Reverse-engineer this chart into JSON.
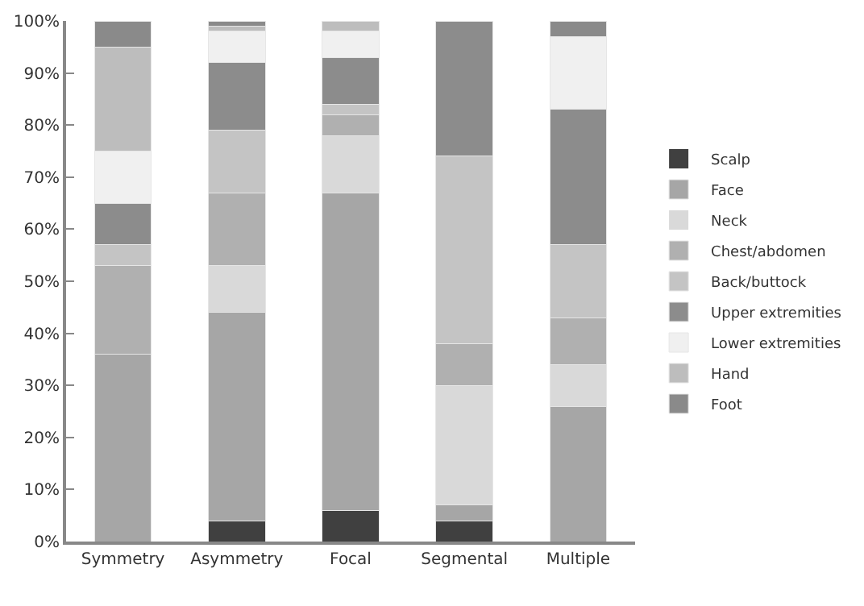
{
  "chart_data": {
    "type": "bar",
    "stacked": true,
    "categories": [
      "Symmetry",
      "Asymmetry",
      "Focal",
      "Segmental",
      "Multiple"
    ],
    "series": [
      {
        "name": "Scalp",
        "color": "#404040",
        "values": [
          0,
          4,
          6,
          4,
          0
        ]
      },
      {
        "name": "Face",
        "color": "#a6a6a6",
        "values": [
          36,
          40,
          61,
          3,
          26
        ]
      },
      {
        "name": "Neck",
        "color": "#d9d9d9",
        "values": [
          0,
          9,
          11,
          23,
          8
        ]
      },
      {
        "name": "Chest/abdomen",
        "color": "#b0b0b0",
        "values": [
          17,
          14,
          4,
          8,
          9
        ]
      },
      {
        "name": "Back/buttock",
        "color": "#c4c4c4",
        "values": [
          4,
          12,
          2,
          36,
          14
        ]
      },
      {
        "name": "Upper extremities",
        "color": "#8c8c8c",
        "values": [
          8,
          13,
          9,
          26,
          26
        ]
      },
      {
        "name": "Lower extremities",
        "color": "#f0f0f0",
        "values": [
          10,
          6,
          5,
          0,
          14
        ]
      },
      {
        "name": "Hand",
        "color": "#bdbdbd",
        "values": [
          20,
          1,
          2,
          0,
          0
        ]
      },
      {
        "name": "Foot",
        "color": "#8a8a8a",
        "values": [
          5,
          1,
          0,
          0,
          3
        ]
      }
    ],
    "ylim": [
      0,
      100
    ],
    "yticks": [
      {
        "value": 0,
        "label": "0%"
      },
      {
        "value": 10,
        "label": "10%"
      },
      {
        "value": 20,
        "label": "20%"
      },
      {
        "value": 30,
        "label": "30%"
      },
      {
        "value": 40,
        "label": "40%"
      },
      {
        "value": 50,
        "label": "50%"
      },
      {
        "value": 60,
        "label": "60%"
      },
      {
        "value": 70,
        "label": "70%"
      },
      {
        "value": 80,
        "label": "80%"
      },
      {
        "value": 90,
        "label": "90%"
      },
      {
        "value": 100,
        "label": "100%"
      }
    ],
    "legend": "right"
  }
}
